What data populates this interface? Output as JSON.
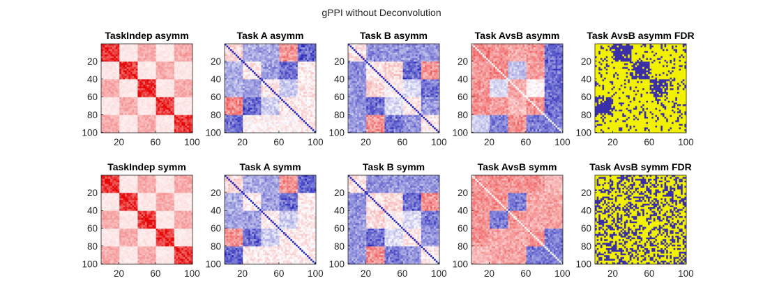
{
  "figure": {
    "title": "gPPI without Deconvolution"
  },
  "colors": {
    "red": "#e60000",
    "blue": "#1f1fb8",
    "fdr_yellow": "#f2f200",
    "fdr_blue": "#3a2fa8",
    "axis": "#262626"
  },
  "chart_data": [
    {
      "type": "heatmap",
      "title": "TaskIndep asymm",
      "colormap": "white-red",
      "pattern": "taskindep",
      "symmetric": false,
      "noise": 0.06,
      "xticks": [
        "20",
        "60",
        "100"
      ],
      "yticks": [
        "20",
        "40",
        "60",
        "80",
        "100"
      ],
      "xlim": [
        1,
        100
      ],
      "ylim": [
        1,
        100
      ]
    },
    {
      "type": "heatmap",
      "title": "Task A asymm",
      "colormap": "blue-white-red",
      "pattern": "taskA",
      "symmetric": false,
      "noise": 0.28,
      "xticks": [
        "20",
        "60",
        "100"
      ],
      "yticks": [
        "20",
        "40",
        "60",
        "80",
        "100"
      ],
      "xlim": [
        1,
        100
      ],
      "ylim": [
        1,
        100
      ]
    },
    {
      "type": "heatmap",
      "title": "Task B asymm",
      "colormap": "blue-white-red",
      "pattern": "taskB",
      "symmetric": false,
      "noise": 0.28,
      "xticks": [
        "20",
        "60",
        "100"
      ],
      "yticks": [
        "20",
        "40",
        "60",
        "80",
        "100"
      ],
      "xlim": [
        1,
        100
      ],
      "ylim": [
        1,
        100
      ]
    },
    {
      "type": "heatmap",
      "title": "Task AvsB asymm",
      "colormap": "blue-white-red",
      "pattern": "avsb_asymm",
      "symmetric": false,
      "noise": 0.22,
      "xticks": [
        "20",
        "60",
        "100"
      ],
      "yticks": [
        "20",
        "40",
        "60",
        "80",
        "100"
      ],
      "xlim": [
        1,
        100
      ],
      "ylim": [
        1,
        100
      ]
    },
    {
      "type": "heatmap",
      "title": "Task AvsB asymm FDR",
      "colormap": "binary",
      "pattern": "fdr_asymm",
      "symmetric": false,
      "noise": 0.18,
      "xticks": [
        "20",
        "60",
        "100"
      ],
      "yticks": [
        "20",
        "40",
        "60",
        "80",
        "100"
      ],
      "xlim": [
        1,
        100
      ],
      "ylim": [
        1,
        100
      ]
    },
    {
      "type": "heatmap",
      "title": "TaskIndep symm",
      "colormap": "white-red",
      "pattern": "taskindep",
      "symmetric": true,
      "noise": 0.06,
      "xticks": [
        "20",
        "60",
        "100"
      ],
      "yticks": [
        "20",
        "40",
        "60",
        "80",
        "100"
      ],
      "xlim": [
        1,
        100
      ],
      "ylim": [
        1,
        100
      ]
    },
    {
      "type": "heatmap",
      "title": "Task A symm",
      "colormap": "blue-white-red",
      "pattern": "taskA",
      "symmetric": true,
      "noise": 0.28,
      "xticks": [
        "20",
        "60",
        "100"
      ],
      "yticks": [
        "20",
        "40",
        "60",
        "80",
        "100"
      ],
      "xlim": [
        1,
        100
      ],
      "ylim": [
        1,
        100
      ]
    },
    {
      "type": "heatmap",
      "title": "Task B symm",
      "colormap": "blue-white-red",
      "pattern": "taskB",
      "symmetric": true,
      "noise": 0.28,
      "xticks": [
        "20",
        "60",
        "100"
      ],
      "yticks": [
        "20",
        "40",
        "60",
        "80",
        "100"
      ],
      "xlim": [
        1,
        100
      ],
      "ylim": [
        1,
        100
      ]
    },
    {
      "type": "heatmap",
      "title": "Task AvsB symm",
      "colormap": "blue-white-red",
      "pattern": "avsb_symm",
      "symmetric": true,
      "noise": 0.22,
      "xticks": [
        "20",
        "60",
        "100"
      ],
      "yticks": [
        "20",
        "40",
        "60",
        "80",
        "100"
      ],
      "xlim": [
        1,
        100
      ],
      "ylim": [
        1,
        100
      ]
    },
    {
      "type": "heatmap",
      "title": "Task AvsB symm FDR",
      "colormap": "binary",
      "pattern": "fdr_symm",
      "symmetric": true,
      "noise": 0.42,
      "xticks": [
        "20",
        "60",
        "100"
      ],
      "yticks": [
        "20",
        "40",
        "60",
        "80",
        "100"
      ],
      "xlim": [
        1,
        100
      ],
      "ylim": [
        1,
        100
      ]
    }
  ]
}
